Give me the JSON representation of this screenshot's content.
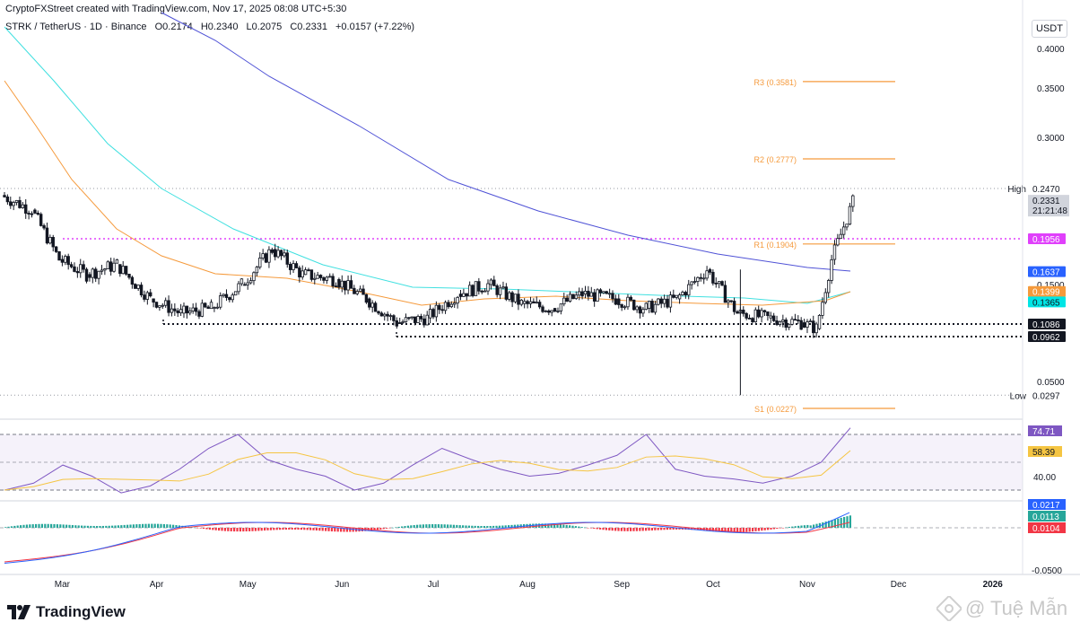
{
  "header": {
    "text": "CryptoFXStreet created with TradingView.com, Nov 17, 2025 08:08 UTC+5:30"
  },
  "symbol": {
    "name": "STRK / TetherUS · 1D · Binance",
    "open": "O0.2174",
    "high": "H0.2340",
    "low": "L0.2075",
    "close": "C0.2331",
    "change": "+0.0157 (+7.22%)"
  },
  "currency": "USDT",
  "logo": {
    "text": "TradingView"
  },
  "watermark": {
    "text": "@ Tuệ Mẫn"
  },
  "colors": {
    "up": "#ffffff",
    "down": "#131722",
    "ema200": "#4f52d6",
    "ema100": "#40e0e0",
    "ema50": "#f59a3c",
    "pivot": "#f59a3c",
    "resistance_magenta": "#e040fb",
    "rsi": "#7e57c2",
    "rsi_ma": "#f5c542",
    "macd": "#2962ff",
    "signal": "#f23645",
    "hist_up": "#26a69a",
    "hist_down": "#f23645"
  },
  "chart_data": [
    {
      "type": "candlestick",
      "title": "STRK / TetherUS · 1D · Binance",
      "x_tick_labels": [
        "Mar",
        "Apr",
        "May",
        "Jun",
        "Jul",
        "Aug",
        "Sep",
        "Oct",
        "Nov",
        "Dec",
        "2026"
      ],
      "y_tick_labels": [
        "0.4000",
        "0.3500",
        "0.3000",
        "0.1500",
        "0.0500"
      ],
      "ylim": [
        0.02,
        0.42
      ],
      "grid": false,
      "candles_approx": [
        {
          "date": "2025-02-10",
          "c": 0.24
        },
        {
          "date": "2025-02-20",
          "c": 0.225
        },
        {
          "date": "2025-03-01",
          "c": 0.175
        },
        {
          "date": "2025-03-10",
          "c": 0.16
        },
        {
          "date": "2025-03-20",
          "c": 0.17
        },
        {
          "date": "2025-03-31",
          "c": 0.135
        },
        {
          "date": "2025-04-10",
          "c": 0.12
        },
        {
          "date": "2025-04-20",
          "c": 0.125
        },
        {
          "date": "2025-04-30",
          "c": 0.15
        },
        {
          "date": "2025-05-10",
          "c": 0.185
        },
        {
          "date": "2025-05-20",
          "c": 0.16
        },
        {
          "date": "2025-05-31",
          "c": 0.155
        },
        {
          "date": "2025-06-10",
          "c": 0.135
        },
        {
          "date": "2025-06-20",
          "c": 0.11
        },
        {
          "date": "2025-06-30",
          "c": 0.115
        },
        {
          "date": "2025-07-10",
          "c": 0.14
        },
        {
          "date": "2025-07-20",
          "c": 0.15
        },
        {
          "date": "2025-07-31",
          "c": 0.13
        },
        {
          "date": "2025-08-10",
          "c": 0.125
        },
        {
          "date": "2025-08-20",
          "c": 0.14
        },
        {
          "date": "2025-08-31",
          "c": 0.135
        },
        {
          "date": "2025-09-10",
          "c": 0.125
        },
        {
          "date": "2025-09-20",
          "c": 0.135
        },
        {
          "date": "2025-09-30",
          "c": 0.165
        },
        {
          "date": "2025-10-10",
          "c": 0.12
        },
        {
          "date": "2025-10-20",
          "c": 0.115
        },
        {
          "date": "2025-10-31",
          "c": 0.11
        },
        {
          "date": "2025-11-05",
          "c": 0.104
        },
        {
          "date": "2025-11-10",
          "c": 0.175
        },
        {
          "date": "2025-11-17",
          "c": 0.2331
        }
      ],
      "overlays": {
        "ema200": {
          "value": 0.1637,
          "label": "0.1637"
        },
        "ema100": {
          "value": 0.1365,
          "label": "0.1365"
        },
        "ema50": {
          "value": 0.1399,
          "label": "0.1399"
        }
      },
      "pivots": [
        {
          "label": "R3 (0.3581)",
          "value": 0.3581
        },
        {
          "label": "R2 (0.2777)",
          "value": 0.2777
        },
        {
          "label": "R1 (0.1904)",
          "value": 0.1904
        },
        {
          "label": "S1 (0.0227)",
          "value": 0.0227
        }
      ],
      "levels": [
        {
          "value": 0.1956,
          "label": "0.1956",
          "style": "dotted-magenta"
        },
        {
          "value": 0.1086,
          "label": "0.1086",
          "style": "dotted-black"
        },
        {
          "value": 0.0962,
          "label": "0.0962",
          "style": "dotted-black"
        }
      ],
      "high": {
        "tag": "High",
        "value": 0.247,
        "label": "0.2470"
      },
      "low": {
        "tag": "Low",
        "value": 0.0297,
        "label": "0.0297"
      },
      "last_price": {
        "value": 0.2331,
        "label": "0.2331",
        "countdown": "21:21:48"
      }
    },
    {
      "type": "line",
      "title": "RSI",
      "series": [
        {
          "values_approx": [
            30,
            35,
            48,
            40,
            28,
            33,
            45,
            60,
            70,
            52,
            45,
            40,
            30,
            35,
            48,
            60,
            52,
            45,
            40,
            42,
            48,
            55,
            70,
            45,
            40,
            38,
            35,
            40,
            50,
            74.71
          ]
        }
      ],
      "ma_last": 58.39,
      "last_label": "74.71",
      "ma_label": "58.39",
      "y_tick_labels": [
        "40.00"
      ],
      "ylim": [
        20,
        80
      ]
    },
    {
      "type": "bar",
      "title": "MACD",
      "macd_label": "0.0217",
      "hist_label": "0.0113",
      "signal_label": "0.0104",
      "y_tick_labels": [
        "-0.0500"
      ],
      "ylim": [
        -0.06,
        0.03
      ]
    }
  ]
}
